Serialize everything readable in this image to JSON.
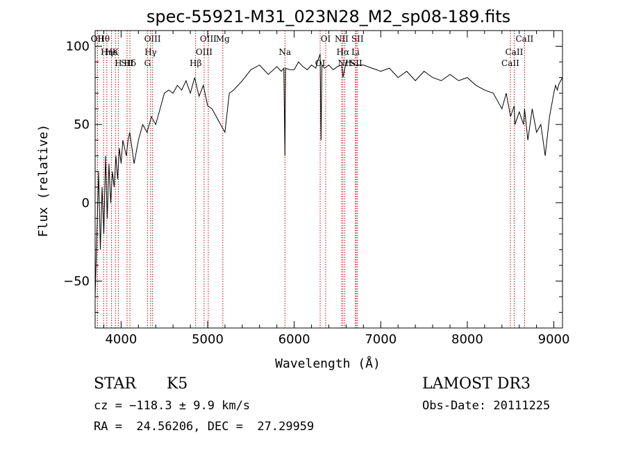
{
  "chart_data": {
    "type": "line",
    "title": "spec-55921-M31_023N28_M2_sp08-189.fits",
    "xlabel": "Wavelength (Å)",
    "ylabel": "Flux (relative)",
    "xlim": [
      3700,
      9100
    ],
    "ylim": [
      -80,
      110
    ],
    "x_ticks": [
      4000,
      5000,
      6000,
      7000,
      8000,
      9000
    ],
    "x_tick_labels": [
      "4000",
      "5000",
      "6000",
      "7000",
      "8000",
      "9000"
    ],
    "y_ticks": [
      -50,
      0,
      50,
      100
    ],
    "y_tick_labels": [
      "−50",
      "0",
      "50",
      "100"
    ],
    "line_color": "#000000",
    "marker_color": "#cc0000",
    "series": [
      {
        "name": "flux",
        "x": [
          3700,
          3720,
          3740,
          3760,
          3780,
          3800,
          3820,
          3840,
          3860,
          3880,
          3900,
          3920,
          3940,
          3960,
          3980,
          4000,
          4020,
          4040,
          4060,
          4080,
          4100,
          4150,
          4200,
          4250,
          4300,
          4350,
          4400,
          4450,
          4500,
          4550,
          4600,
          4650,
          4700,
          4750,
          4800,
          4850,
          4900,
          4950,
          5000,
          5050,
          5100,
          5150,
          5200,
          5250,
          5300,
          5400,
          5500,
          5600,
          5700,
          5800,
          5850,
          5880,
          5893,
          5900,
          5950,
          6000,
          6050,
          6100,
          6150,
          6200,
          6250,
          6280,
          6300,
          6310,
          6320,
          6350,
          6400,
          6450,
          6500,
          6550,
          6563,
          6600,
          6650,
          6700,
          6800,
          6900,
          7000,
          7100,
          7200,
          7300,
          7400,
          7500,
          7600,
          7700,
          7800,
          7900,
          8000,
          8100,
          8200,
          8300,
          8400,
          8450,
          8500,
          8542,
          8550,
          8600,
          8650,
          8662,
          8700,
          8750,
          8800,
          8850,
          8900,
          8950,
          9000,
          9020,
          9040,
          9060,
          9080,
          9100
        ],
        "values": [
          -60,
          -20,
          20,
          -30,
          10,
          -20,
          30,
          -10,
          25,
          0,
          20,
          10,
          30,
          15,
          35,
          25,
          40,
          35,
          30,
          40,
          45,
          25,
          40,
          50,
          45,
          55,
          50,
          60,
          70,
          72,
          70,
          75,
          72,
          78,
          70,
          80,
          68,
          75,
          62,
          60,
          55,
          50,
          45,
          70,
          72,
          78,
          85,
          88,
          82,
          87,
          84,
          86,
          30,
          86,
          85,
          85,
          90,
          87,
          85,
          88,
          86,
          92,
          95,
          40,
          88,
          86,
          88,
          85,
          87,
          88,
          80,
          90,
          90,
          88,
          88,
          86,
          84,
          86,
          80,
          84,
          78,
          84,
          80,
          78,
          82,
          78,
          80,
          75,
          72,
          70,
          60,
          70,
          55,
          62,
          50,
          58,
          50,
          60,
          40,
          60,
          45,
          50,
          30,
          55,
          70,
          75,
          72,
          76,
          78,
          80
        ]
      }
    ],
    "line_markers": [
      {
        "label": "Hθ",
        "wave": 3798
      },
      {
        "label": "K",
        "wave": 3934
      },
      {
        "label": "Hδ",
        "wave": 4102
      },
      {
        "label": "OII",
        "wave": 3727
      },
      {
        "label": "He",
        "wave": 3889
      },
      {
        "label": "SII",
        "wave": 4069
      },
      {
        "label": "OII",
        "wave": 3727
      },
      {
        "label": "Hη",
        "wave": 3835
      },
      {
        "label": "H",
        "wave": 3968
      },
      {
        "label": "OIII",
        "wave": 4363
      },
      {
        "label": "Hγ",
        "wave": 4341
      },
      {
        "label": "G",
        "wave": 4305
      },
      {
        "label": "OIII",
        "wave": 5007
      },
      {
        "label": "OIII",
        "wave": 4959
      },
      {
        "label": "Hβ",
        "wave": 4861
      },
      {
        "label": "Mg",
        "wave": 5175
      },
      {
        "label": "Na",
        "wave": 5893
      },
      {
        "label": "OI",
        "wave": 6300
      },
      {
        "label": "OI",
        "wave": 6364
      },
      {
        "label": "Hα",
        "wave": 6563
      },
      {
        "label": "SII",
        "wave": 6716
      },
      {
        "label": "NII",
        "wave": 6548
      },
      {
        "label": "Li",
        "wave": 6708
      },
      {
        "label": "NII",
        "wave": 6584
      },
      {
        "label": "SII",
        "wave": 6731
      },
      {
        "label": "CaII",
        "wave": 8542
      },
      {
        "label": "CaII",
        "wave": 8498
      },
      {
        "label": "CaII",
        "wave": 8662
      }
    ]
  },
  "info": {
    "object_class": "STAR",
    "subclass": "K5",
    "survey": "LAMOST DR3",
    "cz": "cz = −118.3 ± 9.9 km/s",
    "obs_date": "Obs-Date: 20111225",
    "coords": "RA =  24.56206, DEC =  27.29959"
  }
}
